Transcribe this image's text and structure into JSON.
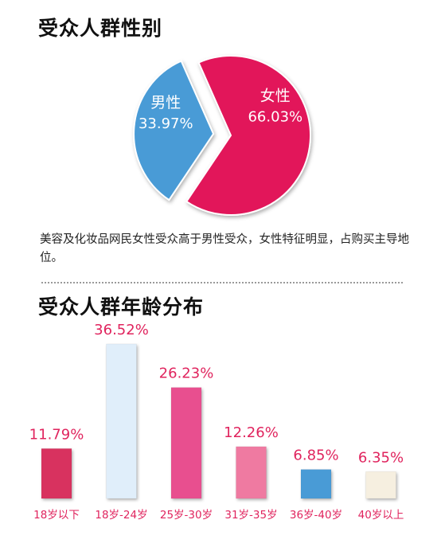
{
  "gender_section": {
    "title": "受众人群性别",
    "description": "美容及化妆品网民女性受众高于男性受众，女性特征明显，占购买主导地位。"
  },
  "age_section": {
    "title": "受众人群年龄分布"
  },
  "colors": {
    "female": "#e2145a",
    "male": "#4a9bd6",
    "value_label": "#e0245e",
    "category_label": "#e0245e"
  },
  "chart_data": [
    {
      "type": "pie",
      "title": "受众人群性别",
      "slices": [
        {
          "label": "女性",
          "value": 66.03,
          "value_text": "66.03%",
          "color": "#e2145a",
          "exploded": false
        },
        {
          "label": "男性",
          "value": 33.97,
          "value_text": "33.97%",
          "color": "#4a9bd6",
          "exploded": true
        }
      ]
    },
    {
      "type": "bar",
      "title": "受众人群年龄分布",
      "categories": [
        "18岁以下",
        "18岁-24岁",
        "25岁-30岁",
        "31岁-35岁",
        "36岁-40岁",
        "40岁以上"
      ],
      "values": [
        11.79,
        36.52,
        26.23,
        12.26,
        6.85,
        6.35
      ],
      "value_labels": [
        "11.79%",
        "36.52%",
        "26.23%",
        "12.26%",
        "6.85%",
        "6.35%"
      ],
      "colors": [
        "#d8335f",
        "#e0eefa",
        "#e8508f",
        "#ef7aa1",
        "#4a9bd6",
        "#f6efe0"
      ],
      "ylim": [
        0,
        36.52
      ],
      "grid": false
    }
  ]
}
